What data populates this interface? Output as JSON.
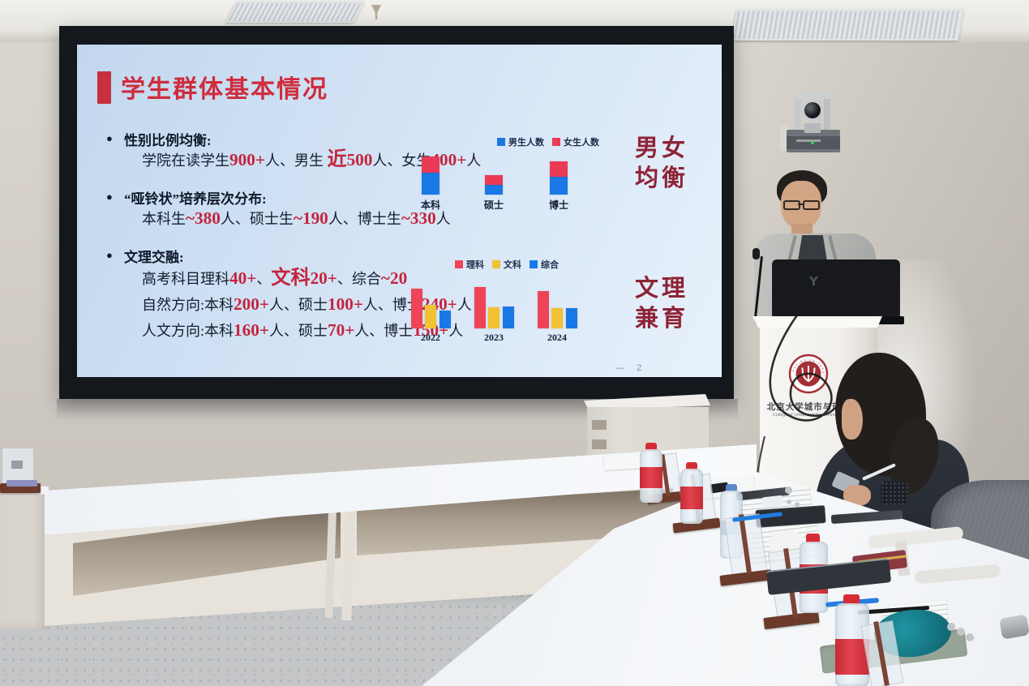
{
  "slide": {
    "title": "学生群体基本情况",
    "bullet_char": "●",
    "bullets": [
      {
        "heading": "性别比例均衡:",
        "lines": [
          [
            {
              "t": "学院在读学生"
            },
            {
              "t": "900+",
              "s": "num"
            },
            {
              "t": "人、男生 "
            },
            {
              "t": "近",
              "s": "num-big"
            },
            {
              "t": "500",
              "s": "num"
            },
            {
              "t": "人、女生"
            },
            {
              "t": "400+",
              "s": "num"
            },
            {
              "t": "人"
            }
          ]
        ]
      },
      {
        "heading": "“哑铃状”培养层次分布:",
        "lines": [
          [
            {
              "t": "本科生"
            },
            {
              "t": "~380",
              "s": "num"
            },
            {
              "t": "人、硕士生"
            },
            {
              "t": "~190",
              "s": "num"
            },
            {
              "t": "人、博士生"
            },
            {
              "t": "~330",
              "s": "num"
            },
            {
              "t": "人"
            }
          ]
        ]
      },
      {
        "heading": "文理交融:",
        "lines": [
          [
            {
              "t": "高考科目理科"
            },
            {
              "t": "40+",
              "s": "num"
            },
            {
              "t": "、"
            },
            {
              "t": "文科",
              "s": "num-big"
            },
            {
              "t": "20+",
              "s": "num"
            },
            {
              "t": "、综合"
            },
            {
              "t": "~20",
              "s": "num"
            }
          ],
          [
            {
              "t": "自然方向:本科"
            },
            {
              "t": "200+",
              "s": "num"
            },
            {
              "t": "人、硕士"
            },
            {
              "t": "100+",
              "s": "num"
            },
            {
              "t": "人、博士"
            },
            {
              "t": "240+",
              "s": "num"
            },
            {
              "t": "人"
            }
          ],
          [
            {
              "t": "人文方向:本科"
            },
            {
              "t": "160+",
              "s": "num"
            },
            {
              "t": "人、硕士"
            },
            {
              "t": "70+",
              "s": "num"
            },
            {
              "t": "人、博士"
            },
            {
              "t": "150+",
              "s": "num"
            },
            {
              "t": "人"
            }
          ]
        ]
      }
    ],
    "side_labels": [
      {
        "text": "男女\n均衡"
      },
      {
        "text": "文理\n兼育"
      }
    ],
    "page": {
      "dash": "—",
      "number": "2"
    }
  },
  "chart_data": [
    {
      "type": "bar",
      "stacked": true,
      "categories": [
        "本科",
        "硕士",
        "博士"
      ],
      "series": [
        {
          "name": "男生人数",
          "color": "#1a78e6",
          "values": [
            220,
            100,
            180
          ]
        },
        {
          "name": "女生人数",
          "color": "#ea3a55",
          "values": [
            160,
            90,
            150
          ]
        }
      ],
      "legend_position": "top",
      "axes_visible": false,
      "units": "人"
    },
    {
      "type": "bar",
      "stacked": false,
      "categories": [
        "2022",
        "2023",
        "2024"
      ],
      "series": [
        {
          "name": "理科",
          "color": "#ee4458",
          "values": [
            45,
            46,
            42
          ]
        },
        {
          "name": "文科",
          "color": "#f2c233",
          "values": [
            26,
            24,
            23
          ]
        },
        {
          "name": "综合",
          "color": "#1a78e6",
          "values": [
            20,
            25,
            23
          ]
        }
      ],
      "legend_position": "top",
      "axes_visible": false
    }
  ],
  "podium": {
    "org_cn": "北京大学城市与环境学院",
    "org_en": "College of Urban and Environmental Sciences",
    "logo_ring_text": "PEKING UNIVERSITY"
  },
  "colors": {
    "title_red": "#ce2d3d",
    "number_red": "#c4243c",
    "side_label_red": "#8f2336",
    "bar_blue": "#1a78e6",
    "bar_red": "#ea3a55",
    "bar_yellow": "#f2c233",
    "slide_bg": "#d3e3f5"
  }
}
